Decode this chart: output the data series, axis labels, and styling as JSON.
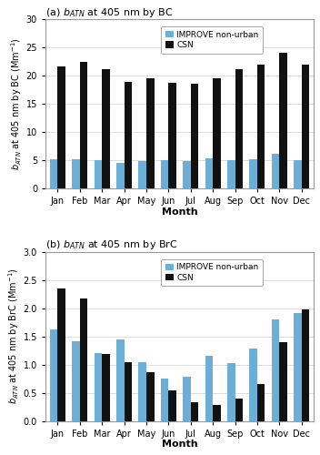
{
  "months": [
    "Jan",
    "Feb",
    "Mar",
    "Apr",
    "May",
    "Jun",
    "Jul",
    "Aug",
    "Sep",
    "Oct",
    "Nov",
    "Dec"
  ],
  "bc_improve": [
    5.1,
    5.1,
    5.0,
    4.6,
    4.8,
    5.0,
    4.8,
    5.3,
    5.0,
    5.1,
    6.1,
    5.0
  ],
  "bc_csn": [
    21.7,
    22.5,
    21.2,
    18.9,
    19.5,
    18.8,
    18.6,
    19.6,
    21.1,
    22.0,
    24.0,
    22.0
  ],
  "brc_improve": [
    1.62,
    1.42,
    1.21,
    1.44,
    1.04,
    0.76,
    0.78,
    1.16,
    1.02,
    1.28,
    1.8,
    1.91
  ],
  "brc_csn": [
    2.35,
    2.17,
    1.19,
    1.05,
    0.87,
    0.55,
    0.34,
    0.29,
    0.4,
    0.66,
    1.39,
    1.98
  ],
  "improve_color": "#6BAED6",
  "csn_color": "#111111",
  "title_a": "(a) $b_{ATN}$ at 405 nm by BC",
  "title_b": "(b) $b_{ATN}$ at 405 nm by BrC",
  "ylabel_a": "$b_{ATN}$ at 405 nm by BC (Mm$^{-1}$)",
  "ylabel_b": "$b_{ATN}$ at 405 nm by BrC (Mm$^{-1}$)",
  "xlabel": "Month",
  "ylim_a": [
    0,
    30
  ],
  "ylim_b": [
    0.0,
    3.0
  ],
  "yticks_a": [
    0,
    5,
    10,
    15,
    20,
    25,
    30
  ],
  "yticks_b": [
    0.0,
    0.5,
    1.0,
    1.5,
    2.0,
    2.5,
    3.0
  ],
  "legend_labels": [
    "IMPROVE non-urban",
    "CSN"
  ],
  "background_color": "#ffffff",
  "plot_bg": "#f5f5f5",
  "grid_color": "#dddddd",
  "spine_color": "#999999"
}
